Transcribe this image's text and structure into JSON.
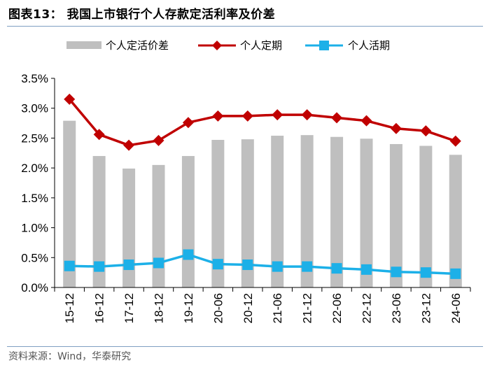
{
  "figure": {
    "title": "图表13：  我国上市银行个人存款定活利率及价差",
    "source": "资料来源：Wind，华泰研究"
  },
  "colors": {
    "spread": "#bfbfbf",
    "fixed": "#c00000",
    "demand": "#1cb0e8",
    "rule": "#7f9fc2"
  },
  "chart_data": {
    "type": "bar+line",
    "title": "我国上市银行个人存款定活利率及价差",
    "categories": [
      "15-12",
      "16-12",
      "17-12",
      "18-12",
      "19-12",
      "20-06",
      "20-12",
      "21-06",
      "21-12",
      "22-06",
      "22-12",
      "23-06",
      "23-12",
      "24-06"
    ],
    "series": [
      {
        "name": "个人定活价差",
        "type": "bar",
        "values": [
          2.79,
          2.2,
          1.99,
          2.05,
          2.2,
          2.47,
          2.48,
          2.54,
          2.55,
          2.52,
          2.49,
          2.4,
          2.37,
          2.22
        ]
      },
      {
        "name": "个人定期",
        "type": "line",
        "marker": "diamond",
        "values": [
          3.15,
          2.56,
          2.38,
          2.46,
          2.76,
          2.87,
          2.87,
          2.89,
          2.89,
          2.84,
          2.79,
          2.66,
          2.62,
          2.45
        ]
      },
      {
        "name": "个人活期",
        "type": "line",
        "marker": "square",
        "values": [
          0.36,
          0.35,
          0.38,
          0.41,
          0.55,
          0.39,
          0.38,
          0.35,
          0.35,
          0.32,
          0.3,
          0.26,
          0.25,
          0.23
        ]
      }
    ],
    "ylim": [
      0,
      3.5
    ],
    "yticks": [
      "0.0%",
      "0.5%",
      "1.0%",
      "1.5%",
      "2.0%",
      "2.5%",
      "3.0%",
      "3.5%"
    ],
    "ytick_values": [
      0,
      0.5,
      1.0,
      1.5,
      2.0,
      2.5,
      3.0,
      3.5
    ],
    "legend_position": "top",
    "grid": false
  }
}
